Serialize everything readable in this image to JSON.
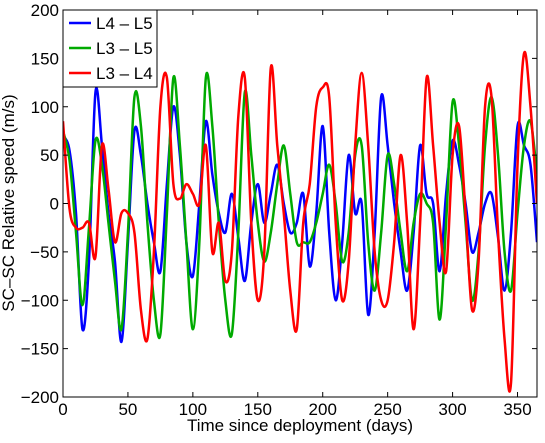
{
  "chart_data": {
    "type": "line",
    "xlabel": "Time since deployment (days)",
    "ylabel": "SC–SC Relative speed (m/s)",
    "xlim": [
      0,
      365
    ],
    "ylim": [
      -200,
      200
    ],
    "xticks": [
      0,
      50,
      100,
      150,
      200,
      250,
      300,
      350
    ],
    "yticks": [
      -200,
      -150,
      -100,
      -50,
      0,
      50,
      100,
      150,
      200
    ],
    "grid": false,
    "legend_position": "top-left",
    "series": [
      {
        "name": "L4 – L5",
        "color": "#0000ff",
        "points": [
          [
            0,
            70
          ],
          [
            5,
            55
          ],
          [
            10,
            -10
          ],
          [
            15,
            -130
          ],
          [
            20,
            -60
          ],
          [
            25,
            115
          ],
          [
            30,
            60
          ],
          [
            35,
            -10
          ],
          [
            40,
            -60
          ],
          [
            45,
            -143
          ],
          [
            50,
            -40
          ],
          [
            55,
            75
          ],
          [
            60,
            50
          ],
          [
            65,
            0
          ],
          [
            70,
            -40
          ],
          [
            75,
            -70
          ],
          [
            80,
            20
          ],
          [
            85,
            100
          ],
          [
            90,
            50
          ],
          [
            95,
            -40
          ],
          [
            100,
            -75
          ],
          [
            105,
            0
          ],
          [
            110,
            85
          ],
          [
            115,
            30
          ],
          [
            120,
            -10
          ],
          [
            125,
            -30
          ],
          [
            130,
            10
          ],
          [
            135,
            -35
          ],
          [
            140,
            -80
          ],
          [
            145,
            -20
          ],
          [
            150,
            20
          ],
          [
            155,
            -20
          ],
          [
            160,
            10
          ],
          [
            165,
            40
          ],
          [
            170,
            0
          ],
          [
            175,
            -30
          ],
          [
            180,
            -20
          ],
          [
            185,
            10
          ],
          [
            190,
            -65
          ],
          [
            195,
            -10
          ],
          [
            200,
            80
          ],
          [
            205,
            -30
          ],
          [
            210,
            -100
          ],
          [
            215,
            -40
          ],
          [
            220,
            50
          ],
          [
            225,
            -10
          ],
          [
            230,
            0
          ],
          [
            235,
            -115
          ],
          [
            240,
            -30
          ],
          [
            245,
            110
          ],
          [
            250,
            60
          ],
          [
            255,
            0
          ],
          [
            260,
            -50
          ],
          [
            265,
            -90
          ],
          [
            270,
            -30
          ],
          [
            275,
            60
          ],
          [
            280,
            10
          ],
          [
            285,
            0
          ],
          [
            290,
            -70
          ],
          [
            295,
            10
          ],
          [
            300,
            65
          ],
          [
            305,
            40
          ],
          [
            310,
            0
          ],
          [
            315,
            -50
          ],
          [
            320,
            -30
          ],
          [
            325,
            0
          ],
          [
            330,
            10
          ],
          [
            335,
            -35
          ],
          [
            340,
            -90
          ],
          [
            345,
            -30
          ],
          [
            350,
            80
          ],
          [
            355,
            60
          ],
          [
            360,
            40
          ],
          [
            365,
            -40
          ]
        ]
      },
      {
        "name": "L3 – L5",
        "color": "#00aa00",
        "points": [
          [
            0,
            75
          ],
          [
            5,
            45
          ],
          [
            10,
            -30
          ],
          [
            15,
            -105
          ],
          [
            20,
            -25
          ],
          [
            25,
            65
          ],
          [
            30,
            40
          ],
          [
            35,
            -20
          ],
          [
            40,
            -80
          ],
          [
            45,
            -130
          ],
          [
            50,
            -30
          ],
          [
            55,
            110
          ],
          [
            60,
            80
          ],
          [
            65,
            -20
          ],
          [
            70,
            -100
          ],
          [
            75,
            -135
          ],
          [
            80,
            -10
          ],
          [
            85,
            130
          ],
          [
            90,
            60
          ],
          [
            95,
            -40
          ],
          [
            100,
            -130
          ],
          [
            105,
            -40
          ],
          [
            110,
            130
          ],
          [
            115,
            80
          ],
          [
            120,
            -20
          ],
          [
            125,
            -100
          ],
          [
            130,
            -135
          ],
          [
            135,
            -30
          ],
          [
            140,
            115
          ],
          [
            145,
            50
          ],
          [
            150,
            -20
          ],
          [
            155,
            -60
          ],
          [
            160,
            -30
          ],
          [
            165,
            20
          ],
          [
            170,
            60
          ],
          [
            175,
            10
          ],
          [
            180,
            -40
          ],
          [
            185,
            -40
          ],
          [
            190,
            -40
          ],
          [
            195,
            -20
          ],
          [
            200,
            10
          ],
          [
            205,
            40
          ],
          [
            210,
            0
          ],
          [
            215,
            -60
          ],
          [
            220,
            -30
          ],
          [
            225,
            50
          ],
          [
            230,
            60
          ],
          [
            235,
            -40
          ],
          [
            240,
            -90
          ],
          [
            245,
            -30
          ],
          [
            250,
            50
          ],
          [
            255,
            20
          ],
          [
            260,
            -30
          ],
          [
            265,
            -70
          ],
          [
            270,
            -20
          ],
          [
            275,
            10
          ],
          [
            280,
            0
          ],
          [
            285,
            -20
          ],
          [
            290,
            -120
          ],
          [
            295,
            -20
          ],
          [
            300,
            105
          ],
          [
            305,
            60
          ],
          [
            310,
            -20
          ],
          [
            315,
            -100
          ],
          [
            320,
            -50
          ],
          [
            325,
            60
          ],
          [
            330,
            110
          ],
          [
            335,
            50
          ],
          [
            340,
            -50
          ],
          [
            345,
            -90
          ],
          [
            350,
            -10
          ],
          [
            355,
            60
          ],
          [
            360,
            85
          ],
          [
            365,
            30
          ]
        ]
      },
      {
        "name": "L3 – L4",
        "color": "#ff0000",
        "points": [
          [
            0,
            85
          ],
          [
            5,
            -5
          ],
          [
            10,
            -25
          ],
          [
            15,
            -25
          ],
          [
            20,
            -20
          ],
          [
            25,
            -55
          ],
          [
            30,
            60
          ],
          [
            35,
            15
          ],
          [
            40,
            -40
          ],
          [
            45,
            -10
          ],
          [
            50,
            -10
          ],
          [
            55,
            -30
          ],
          [
            60,
            -110
          ],
          [
            65,
            -140
          ],
          [
            70,
            -50
          ],
          [
            75,
            100
          ],
          [
            80,
            130
          ],
          [
            85,
            20
          ],
          [
            90,
            5
          ],
          [
            95,
            20
          ],
          [
            100,
            10
          ],
          [
            105,
            0
          ],
          [
            110,
            60
          ],
          [
            115,
            -50
          ],
          [
            120,
            -20
          ],
          [
            125,
            -80
          ],
          [
            130,
            -50
          ],
          [
            135,
            90
          ],
          [
            140,
            130
          ],
          [
            145,
            -20
          ],
          [
            150,
            -100
          ],
          [
            155,
            -50
          ],
          [
            160,
            140
          ],
          [
            165,
            60
          ],
          [
            170,
            -10
          ],
          [
            175,
            -90
          ],
          [
            180,
            -130
          ],
          [
            185,
            -20
          ],
          [
            190,
            20
          ],
          [
            195,
            100
          ],
          [
            200,
            120
          ],
          [
            205,
            110
          ],
          [
            210,
            -20
          ],
          [
            215,
            -100
          ],
          [
            220,
            -60
          ],
          [
            225,
            60
          ],
          [
            230,
            135
          ],
          [
            235,
            60
          ],
          [
            240,
            -50
          ],
          [
            245,
            -100
          ],
          [
            250,
            -100
          ],
          [
            255,
            -40
          ],
          [
            260,
            50
          ],
          [
            265,
            -20
          ],
          [
            270,
            -130
          ],
          [
            275,
            -20
          ],
          [
            280,
            130
          ],
          [
            285,
            60
          ],
          [
            290,
            -20
          ],
          [
            295,
            -70
          ],
          [
            300,
            50
          ],
          [
            305,
            80
          ],
          [
            310,
            -10
          ],
          [
            315,
            -110
          ],
          [
            320,
            -60
          ],
          [
            325,
            100
          ],
          [
            330,
            110
          ],
          [
            335,
            -30
          ],
          [
            340,
            -140
          ],
          [
            345,
            -185
          ],
          [
            350,
            40
          ],
          [
            355,
            155
          ],
          [
            360,
            100
          ],
          [
            365,
            0
          ]
        ]
      }
    ]
  }
}
